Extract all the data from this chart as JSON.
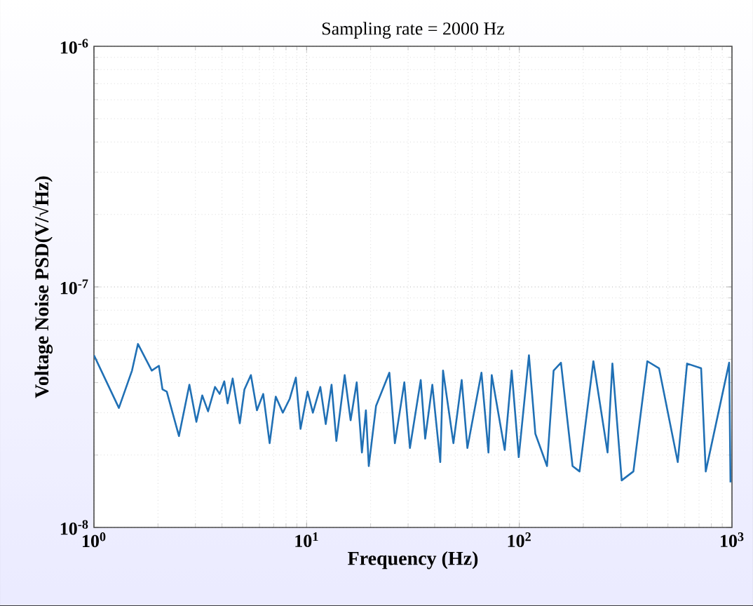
{
  "chart_data": {
    "type": "line",
    "title": "Sampling rate = 2000 Hz",
    "xlabel": "Frequency (Hz)",
    "ylabel": "Voltage Noise PSD(V/√Hz)",
    "log": "xy",
    "grid": true,
    "xlim": [
      1,
      1000
    ],
    "ylim": [
      1e-08,
      1e-06
    ],
    "xticks": [
      {
        "value": 1,
        "label": "10$^{0}$"
      },
      {
        "value": 10,
        "label": "10$^{1}$"
      },
      {
        "value": 100,
        "label": "10$^{2}$"
      },
      {
        "value": 1000,
        "label": "10$^{3}$"
      }
    ],
    "yticks": [
      {
        "value": 1e-08,
        "label": "10$^{-8}$"
      },
      {
        "value": 1e-07,
        "label": "10$^{-7}$"
      },
      {
        "value": 1e-06,
        "label": "10$^{-6}$"
      }
    ],
    "series": [
      {
        "color": "#2070b5",
        "x": [
          1,
          1.31,
          1.51,
          1.61,
          1.87,
          2.02,
          2.1,
          2.2,
          2.51,
          2.81,
          3.03,
          3.23,
          3.44,
          3.71,
          3.9,
          4.1,
          4.25,
          4.49,
          4.85,
          5.1,
          5.47,
          5.84,
          6.25,
          6.7,
          7.16,
          7.73,
          8.33,
          8.9,
          9.36,
          10.1,
          10.7,
          11.6,
          12.3,
          13.1,
          13.8,
          15.1,
          16.1,
          17.2,
          18.2,
          19.0,
          19.6,
          21.2,
          24.5,
          26.0,
          28.8,
          30.6,
          34.4,
          36.1,
          39.0,
          42.5,
          43.8,
          49.0,
          53.6,
          57.0,
          66.4,
          71.6,
          74.2,
          85.4,
          92.1,
          99.4,
          111,
          119,
          135,
          145,
          157,
          178,
          192,
          223,
          260,
          274,
          303,
          344,
          400,
          454,
          556,
          615,
          716,
          753,
          970,
          984
        ],
        "values": [
          5.2e-08,
          3.14e-08,
          4.49e-08,
          5.79e-08,
          4.49e-08,
          4.7e-08,
          3.75e-08,
          3.67e-08,
          2.4e-08,
          3.92e-08,
          2.75e-08,
          3.54e-08,
          3.04e-08,
          3.84e-08,
          3.59e-08,
          4.05e-08,
          3.28e-08,
          4.16e-08,
          2.71e-08,
          3.75e-08,
          4.3e-08,
          3.07e-08,
          3.59e-08,
          2.24e-08,
          3.5e-08,
          3e-08,
          3.43e-08,
          4.2e-08,
          2.57e-08,
          3.67e-08,
          3e-08,
          3.84e-08,
          2.69e-08,
          3.92e-08,
          2.29e-08,
          4.3e-08,
          2.79e-08,
          4.01e-08,
          2.05e-08,
          3.07e-08,
          1.8e-08,
          3.2e-08,
          4.4e-08,
          2.24e-08,
          4.01e-08,
          2.14e-08,
          4.1e-08,
          2.34e-08,
          3.92e-08,
          1.87e-08,
          4.49e-08,
          2.24e-08,
          4.1e-08,
          2.14e-08,
          4.4e-08,
          2.05e-08,
          4.3e-08,
          2.1e-08,
          4.49e-08,
          1.96e-08,
          5.2e-08,
          2.45e-08,
          1.8e-08,
          4.49e-08,
          4.84e-08,
          1.8e-08,
          1.71e-08,
          4.91e-08,
          2.05e-08,
          4.8e-08,
          1.57e-08,
          1.71e-08,
          4.91e-08,
          4.59e-08,
          1.87e-08,
          4.8e-08,
          4.59e-08,
          1.71e-08,
          4.84e-08,
          1.54e-08
        ]
      }
    ]
  }
}
